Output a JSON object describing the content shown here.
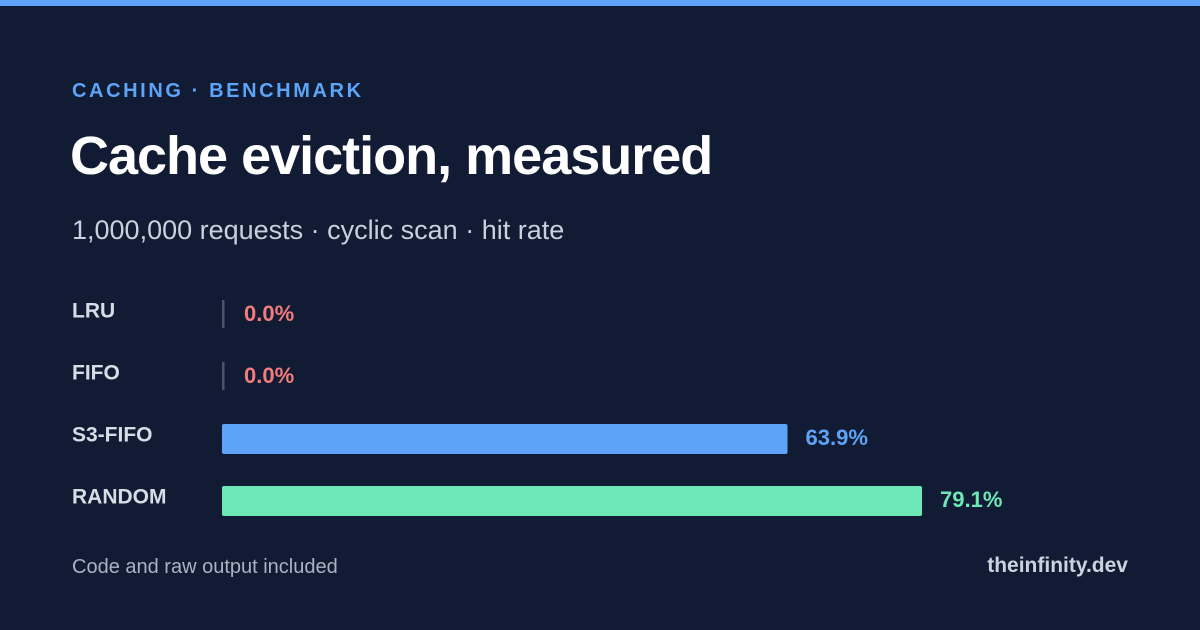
{
  "header": {
    "eyebrow": "CACHING · BENCHMARK",
    "title": "Cache eviction, measured",
    "subtitle": "1,000,000 requests · cyclic scan · hit rate"
  },
  "footer": {
    "left_text": "Code and raw output included",
    "brand": "theinfinity.dev"
  },
  "colors": {
    "background": "#111b33",
    "top_accent": "#5da3f6",
    "eyebrow": "#5da3f6",
    "zero_marker": "#4b5568"
  },
  "chart_data": {
    "type": "bar",
    "orientation": "horizontal",
    "categories": [
      "LRU",
      "FIFO",
      "S3-FIFO",
      "RANDOM"
    ],
    "series": [
      {
        "values": [
          0.0,
          0.0,
          63.9,
          79.1
        ],
        "value_labels": [
          "0.0%",
          "0.0%",
          "63.9%",
          "79.1%"
        ],
        "colors": [
          "#f27b7b",
          "#f27b7b",
          "#5da3f6",
          "#6ee7b7"
        ]
      }
    ],
    "xlim": [
      0,
      100
    ],
    "grid": false,
    "legend": "none"
  }
}
